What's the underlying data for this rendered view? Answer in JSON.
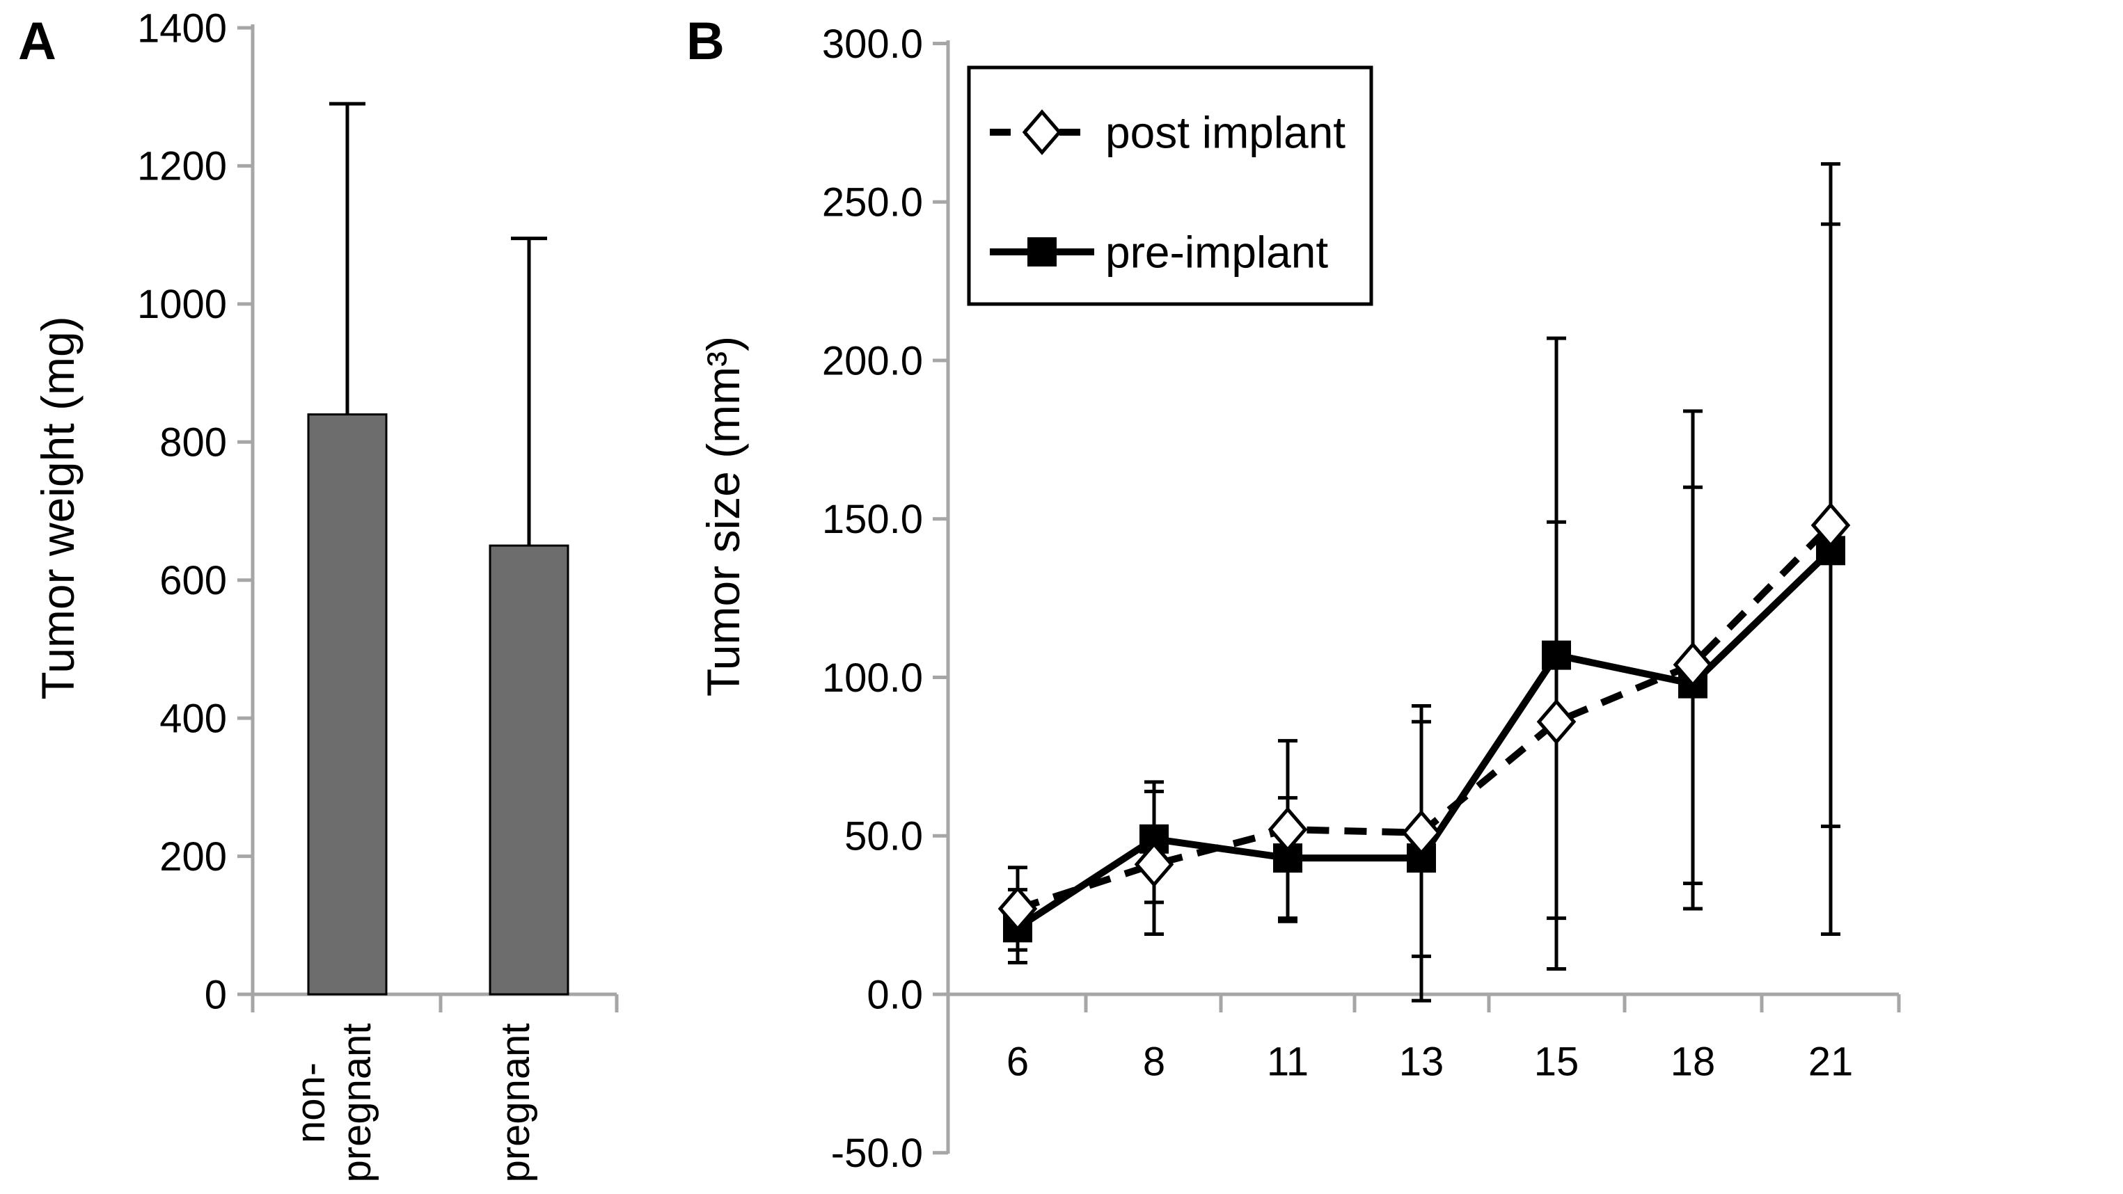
{
  "figure": {
    "background": "#ffffff",
    "text_color": "#000000"
  },
  "colors": {
    "axis": "#a6a6a6",
    "bar_fill": "#6d6d6d",
    "bar_stroke": "#000000",
    "series": "#000000",
    "error_bar": "#000000",
    "legend_border": "#000000",
    "legend_fill": "#ffffff",
    "marker_open_fill": "#ffffff"
  },
  "chart_data": [
    {
      "type": "bar",
      "panel_letter": "A",
      "title": "",
      "xlabel": "",
      "ylabel": "Tumor weight  (mg)",
      "categories": [
        "non-\npregnant",
        "pregnant"
      ],
      "category_lines": [
        [
          "non-",
          "pregnant"
        ],
        [
          "pregnant"
        ]
      ],
      "values": [
        840,
        650
      ],
      "error_top": [
        1290,
        1095
      ],
      "ylim": [
        0,
        1400
      ],
      "yticks": [
        0,
        200,
        400,
        600,
        800,
        1000,
        1200,
        1400
      ],
      "ytick_labels": [
        "0",
        "200",
        "400",
        "600",
        "800",
        "1000",
        "1200",
        "1400"
      ],
      "grid": false,
      "legend_position": "none"
    },
    {
      "type": "line",
      "panel_letter": "B",
      "title": "",
      "xlabel": "",
      "ylabel": "Tumor size (mm³)",
      "x_categories": [
        "6",
        "8",
        "11",
        "13",
        "15",
        "18",
        "21"
      ],
      "ylim": [
        -50,
        300
      ],
      "yticks": [
        300,
        250,
        200,
        150,
        100,
        50,
        0,
        -50
      ],
      "ytick_labels": [
        "300.0",
        "250.0",
        "200.0",
        "150.0",
        "100.0",
        "50.0",
        "0.0",
        "-50.0"
      ],
      "grid": false,
      "legend_position": "upper-left-inside",
      "legend": {
        "entries": [
          {
            "label": "post implant",
            "marker": "open-diamond",
            "line": "dashed"
          },
          {
            "label": "pre-implant",
            "marker": "filled-square",
            "line": "solid"
          }
        ]
      },
      "series": [
        {
          "name": "post implant",
          "line": "dashed",
          "marker": "open-diamond",
          "values": [
            27,
            41,
            52,
            51,
            86,
            104,
            148
          ],
          "whisker_top": [
            40,
            64,
            80,
            91,
            149,
            184,
            262
          ],
          "whisker_bottom": [
            14,
            19,
            24,
            12,
            24,
            27,
            53
          ]
        },
        {
          "name": "pre-implant",
          "line": "solid",
          "marker": "filled-square",
          "values": [
            21,
            49,
            43,
            43,
            107,
            98,
            140
          ],
          "whisker_top": [
            33,
            67,
            62,
            86,
            207,
            160,
            243
          ],
          "whisker_bottom": [
            10,
            29,
            23,
            -2,
            8,
            35,
            19
          ]
        }
      ]
    }
  ]
}
